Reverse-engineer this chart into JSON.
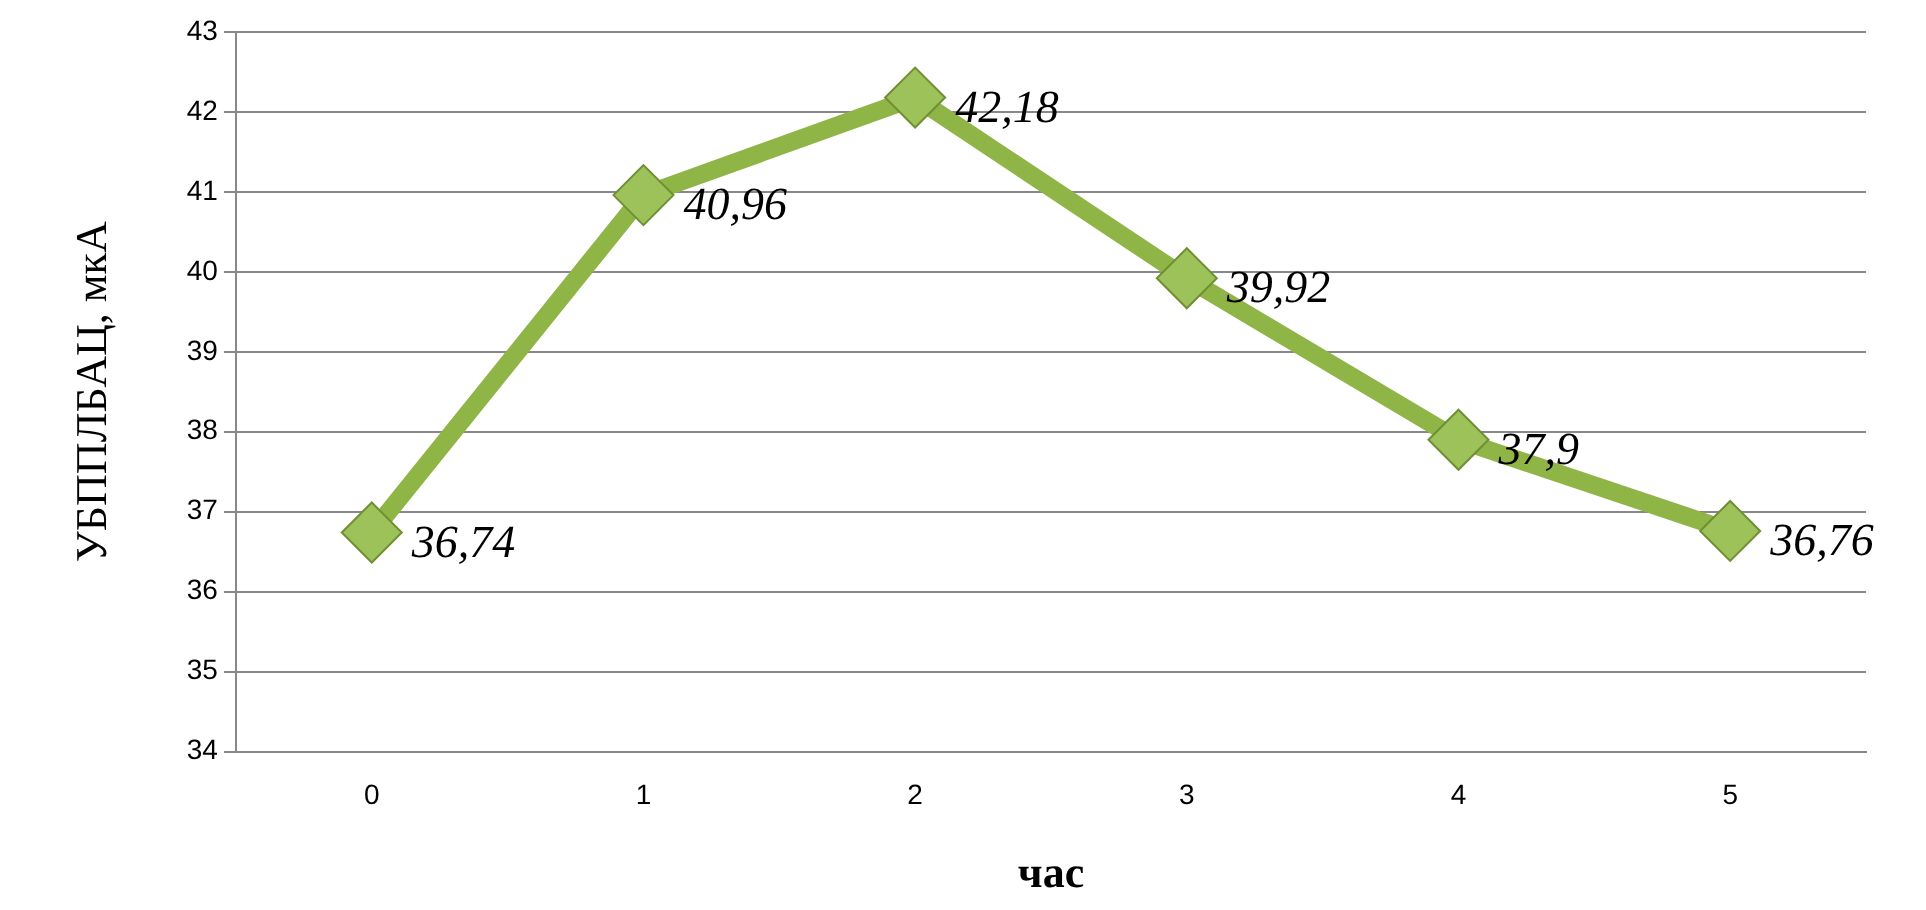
{
  "chart_data": {
    "type": "line",
    "xlabel": "час",
    "ylabel": "УБППЛБАЦ, мкА",
    "categories": [
      "0",
      "1",
      "2",
      "3",
      "4",
      "5"
    ],
    "series": [
      {
        "color": "#8fb547",
        "values": [
          36.74,
          40.96,
          42.18,
          39.92,
          37.9,
          36.76
        ],
        "value_labels": [
          "36,74",
          "40,96",
          "42,18",
          "39,92",
          "37,9",
          "36,76"
        ]
      }
    ],
    "ylim": [
      34,
      43
    ],
    "yticks": [
      34,
      35,
      36,
      37,
      38,
      39,
      40,
      41,
      42,
      43
    ],
    "grid": "y",
    "legend": false,
    "marker": "diamond",
    "line_style": "solid"
  }
}
